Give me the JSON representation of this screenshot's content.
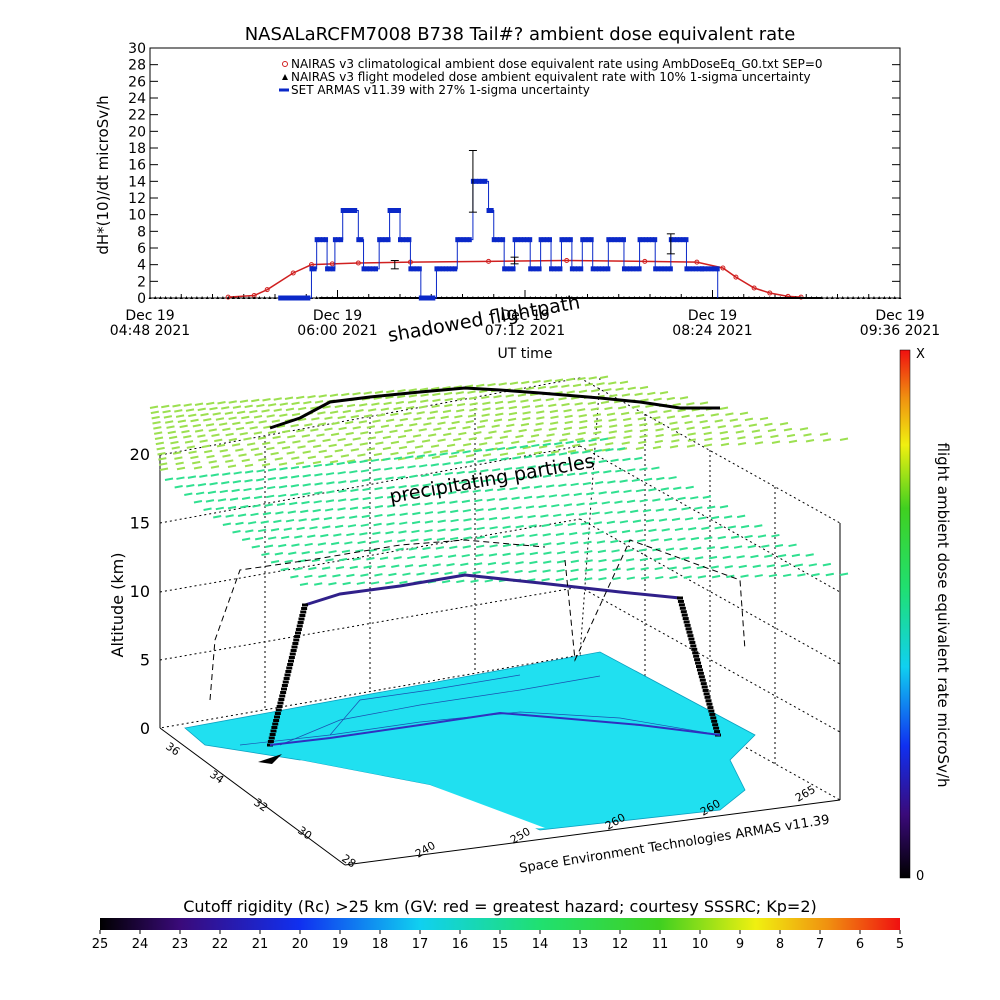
{
  "chart_data": [
    {
      "type": "line",
      "title": "NASALaRCFM7008  B738 Tail#? ambient dose equivalent rate",
      "ylabel": "dH*(10)/dt microSv/h",
      "xlabel": "UT time",
      "ylim": [
        0,
        30
      ],
      "yticks": [
        "0",
        "2",
        "4",
        "6",
        "8",
        "10",
        "12",
        "14",
        "16",
        "18",
        "20",
        "22",
        "24",
        "26",
        "28",
        "30"
      ],
      "xtick_labels": [
        {
          "line1": "Dec 19",
          "line2": "04:48 2021"
        },
        {
          "line1": "Dec 19",
          "line2": "06:00 2021"
        },
        {
          "line1": "Dec 19",
          "line2": "07:12 2021"
        },
        {
          "line1": "Dec 19",
          "line2": "08:24 2021"
        },
        {
          "line1": "Dec 19",
          "line2": "09:36 2021"
        }
      ],
      "legend_position": "top-right",
      "legend": [
        "NAIRAS v3 climatological ambient dose equivalent rate using AmbDoseEq_G0.txt SEP=0",
        "NAIRAS v3 flight modeled dose ambient equivalent rate with 10% 1-sigma uncertainty",
        "SET ARMAS v11.39 with 27% 1-sigma uncertainty"
      ],
      "x_units": "minutes after 04:48 UT",
      "series": [
        {
          "name": "NAIRAS v3 climatological ambient dose equivalent rate using AmbDoseEq_G0.txt SEP=0",
          "color": "#d02020",
          "x": [
            30,
            40,
            45,
            55,
            62,
            70,
            80,
            100,
            130,
            160,
            190,
            210,
            220,
            225,
            232,
            238,
            245,
            250
          ],
          "y": [
            0.1,
            0.3,
            1.0,
            3.0,
            4.0,
            4.1,
            4.2,
            4.3,
            4.4,
            4.5,
            4.4,
            4.3,
            3.6,
            2.5,
            1.2,
            0.6,
            0.2,
            0.1
          ]
        },
        {
          "name": "NAIRAS v3 flight modeled dose ambient equivalent rate with 10% 1-sigma uncertainty",
          "color": "#000000",
          "x": [
            0,
            288
          ],
          "y": [
            0,
            0
          ]
        },
        {
          "name": "SET ARMAS v11.39 with 27% 1-sigma uncertainty",
          "color": "#0a28c8",
          "x": [
            50,
            62,
            64,
            68,
            71,
            74,
            80,
            82,
            88,
            92,
            96,
            100,
            104,
            110,
            118,
            124,
            130,
            132,
            136,
            140,
            146,
            150,
            154,
            158,
            162,
            166,
            170,
            176,
            182,
            188,
            194,
            200,
            206,
            212,
            218
          ],
          "y": [
            0,
            3.5,
            7,
            3.5,
            7,
            10.5,
            7,
            3.5,
            7,
            10.5,
            7,
            3.5,
            0,
            3.5,
            7,
            14,
            10.5,
            7,
            3.5,
            7,
            3.5,
            7,
            3.5,
            7,
            3.5,
            7,
            3.5,
            7,
            3.5,
            7,
            3.5,
            7,
            3.5,
            3.5,
            0
          ]
        }
      ]
    },
    {
      "type": "other",
      "title": "",
      "z_axis_label": "Altitude (km)",
      "z_ticks": [
        "0",
        "5",
        "10",
        "15",
        "20"
      ],
      "lat_ticks": [
        "36",
        "34",
        "32",
        "30",
        "28"
      ],
      "lon_ticks": [
        "240",
        "250",
        "260",
        "260",
        "265"
      ],
      "annotations": [
        "shadowed flightpath",
        "precipitating particles",
        "Space Environment Technologies ARMAS v11.39"
      ],
      "colorbar_right": {
        "label": "flight ambient dose equivalent rate microSv/h",
        "top": "X",
        "bottom": "0"
      },
      "colorbar_bottom": {
        "title": "Cutoff rigidity (Rc) >25 km (GV: red = greatest hazard; courtesy SSSRC; Kp=2)",
        "ticks": [
          "25",
          "24",
          "23",
          "22",
          "21",
          "20",
          "19",
          "18",
          "17",
          "16",
          "15",
          "14",
          "13",
          "12",
          "11",
          "10",
          "9",
          "8",
          "7",
          "6",
          "5"
        ]
      }
    }
  ],
  "colors": {
    "plot_line": "#000000",
    "map_fill": "#20e0f0",
    "particles": "#66e07a",
    "flight_path": "#30208a"
  }
}
